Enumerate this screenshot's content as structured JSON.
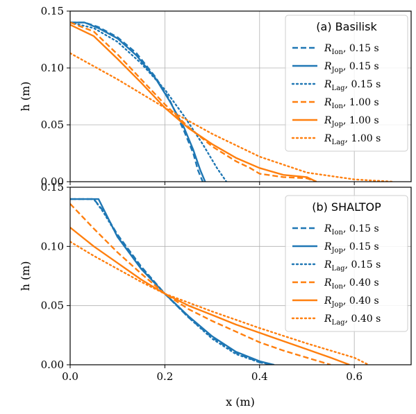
{
  "chart_data": [
    {
      "type": "line",
      "panel_label": "(a) Basilisk",
      "xlabel": "x (m)",
      "ylabel": "h (m)",
      "xlim": [
        0.0,
        0.72
      ],
      "ylim": [
        0.0,
        0.15
      ],
      "xticks": [
        "0.0",
        "0.2",
        "0.4",
        "0.6"
      ],
      "yticks": [
        "0.00",
        "0.05",
        "0.10",
        "0.15"
      ],
      "grid": true,
      "legend_position": "top-right",
      "series": [
        {
          "name": "R_Ion, 0.15 s",
          "legend_sub": "Ion",
          "legend_time": "0.15 s",
          "color": "#1f77b4",
          "dash": "dashed",
          "x": [
            0.0,
            0.03,
            0.06,
            0.1,
            0.14,
            0.18,
            0.21,
            0.24,
            0.26,
            0.27,
            0.28
          ],
          "y": [
            0.14,
            0.14,
            0.136,
            0.127,
            0.113,
            0.092,
            0.072,
            0.045,
            0.025,
            0.01,
            0.0
          ]
        },
        {
          "name": "R_Jop, 0.15 s",
          "legend_sub": "Jop",
          "legend_time": "0.15 s",
          "color": "#1f77b4",
          "dash": "solid",
          "x": [
            0.0,
            0.03,
            0.06,
            0.1,
            0.14,
            0.18,
            0.21,
            0.24,
            0.26,
            0.275,
            0.285
          ],
          "y": [
            0.14,
            0.14,
            0.135,
            0.126,
            0.111,
            0.091,
            0.071,
            0.048,
            0.028,
            0.01,
            0.0
          ]
        },
        {
          "name": "R_Lag, 0.15 s",
          "legend_sub": "Lag",
          "legend_time": "0.15 s",
          "color": "#1f77b4",
          "dash": "dotted",
          "x": [
            0.0,
            0.05,
            0.1,
            0.15,
            0.2,
            0.24,
            0.28,
            0.31,
            0.33
          ],
          "y": [
            0.14,
            0.135,
            0.123,
            0.104,
            0.081,
            0.058,
            0.033,
            0.012,
            0.0
          ]
        },
        {
          "name": "R_Ion, 1.00 s",
          "legend_sub": "Ion",
          "legend_time": "1.00 s",
          "color": "#ff7f0e",
          "dash": "dashed",
          "x": [
            0.0,
            0.05,
            0.1,
            0.15,
            0.2,
            0.25,
            0.3,
            0.35,
            0.38,
            0.4,
            0.45,
            0.5,
            0.52
          ],
          "y": [
            0.14,
            0.132,
            0.112,
            0.09,
            0.068,
            0.048,
            0.031,
            0.018,
            0.012,
            0.007,
            0.004,
            0.003,
            0.0
          ]
        },
        {
          "name": "R_Jop, 1.00 s",
          "legend_sub": "Jop",
          "legend_time": "1.00 s",
          "color": "#ff7f0e",
          "dash": "solid",
          "x": [
            0.0,
            0.05,
            0.1,
            0.15,
            0.2,
            0.25,
            0.3,
            0.35,
            0.4,
            0.45,
            0.5,
            0.52
          ],
          "y": [
            0.138,
            0.128,
            0.108,
            0.087,
            0.065,
            0.047,
            0.033,
            0.021,
            0.012,
            0.006,
            0.004,
            0.0
          ]
        },
        {
          "name": "R_Lag, 1.00 s",
          "legend_sub": "Lag",
          "legend_time": "1.00 s",
          "color": "#ff7f0e",
          "dash": "dotted",
          "x": [
            0.0,
            0.1,
            0.2,
            0.3,
            0.4,
            0.5,
            0.6,
            0.68
          ],
          "y": [
            0.113,
            0.09,
            0.065,
            0.042,
            0.022,
            0.008,
            0.002,
            0.0
          ]
        }
      ]
    },
    {
      "type": "line",
      "panel_label": "(b) SHALTOP",
      "xlabel": "x (m)",
      "ylabel": "h (m)",
      "xlim": [
        0.0,
        0.72
      ],
      "ylim": [
        0.0,
        0.15
      ],
      "xticks": [
        "0.0",
        "0.2",
        "0.4",
        "0.6"
      ],
      "yticks": [
        "0.00",
        "0.05",
        "0.10",
        "0.15"
      ],
      "grid": true,
      "legend_position": "top-right",
      "series": [
        {
          "name": "R_Ion, 0.15 s",
          "legend_sub": "Ion",
          "legend_time": "0.15 s",
          "color": "#1f77b4",
          "dash": "dashed",
          "x": [
            0.0,
            0.05,
            0.07,
            0.1,
            0.15,
            0.2,
            0.25,
            0.3,
            0.35,
            0.4,
            0.43
          ],
          "y": [
            0.14,
            0.14,
            0.13,
            0.11,
            0.083,
            0.06,
            0.04,
            0.023,
            0.01,
            0.002,
            0.0
          ]
        },
        {
          "name": "R_Jop, 0.15 s",
          "legend_sub": "Jop",
          "legend_time": "0.15 s",
          "color": "#1f77b4",
          "dash": "solid",
          "x": [
            0.0,
            0.06,
            0.075,
            0.1,
            0.15,
            0.2,
            0.25,
            0.3,
            0.35,
            0.4,
            0.43
          ],
          "y": [
            0.14,
            0.14,
            0.128,
            0.108,
            0.081,
            0.06,
            0.041,
            0.024,
            0.011,
            0.003,
            0.0
          ]
        },
        {
          "name": "R_Lag, 0.15 s",
          "legend_sub": "Lag",
          "legend_time": "0.15 s",
          "color": "#1f77b4",
          "dash": "dotted",
          "x": [
            0.0,
            0.05,
            0.07,
            0.1,
            0.15,
            0.2,
            0.25,
            0.3,
            0.35,
            0.4,
            0.43
          ],
          "y": [
            0.14,
            0.14,
            0.129,
            0.109,
            0.082,
            0.06,
            0.04,
            0.022,
            0.009,
            0.002,
            0.0
          ]
        },
        {
          "name": "R_Ion, 0.40 s",
          "legend_sub": "Ion",
          "legend_time": "0.40 s",
          "color": "#ff7f0e",
          "dash": "dashed",
          "x": [
            0.0,
            0.05,
            0.1,
            0.15,
            0.2,
            0.25,
            0.3,
            0.35,
            0.4,
            0.45,
            0.5,
            0.55
          ],
          "y": [
            0.136,
            0.115,
            0.095,
            0.077,
            0.06,
            0.047,
            0.037,
            0.028,
            0.019,
            0.012,
            0.006,
            0.0
          ]
        },
        {
          "name": "R_Jop, 0.40 s",
          "legend_sub": "Jop",
          "legend_time": "0.40 s",
          "color": "#ff7f0e",
          "dash": "solid",
          "x": [
            0.0,
            0.05,
            0.1,
            0.15,
            0.2,
            0.25,
            0.3,
            0.35,
            0.4,
            0.45,
            0.5,
            0.55,
            0.59
          ],
          "y": [
            0.116,
            0.1,
            0.086,
            0.072,
            0.06,
            0.05,
            0.042,
            0.034,
            0.027,
            0.02,
            0.013,
            0.006,
            0.0
          ]
        },
        {
          "name": "R_Lag, 0.40 s",
          "legend_sub": "Lag",
          "legend_time": "0.40 s",
          "color": "#ff7f0e",
          "dash": "dotted",
          "x": [
            0.0,
            0.05,
            0.1,
            0.15,
            0.2,
            0.3,
            0.4,
            0.5,
            0.6,
            0.63
          ],
          "y": [
            0.104,
            0.092,
            0.081,
            0.07,
            0.06,
            0.045,
            0.031,
            0.018,
            0.006,
            0.0
          ]
        }
      ]
    }
  ]
}
